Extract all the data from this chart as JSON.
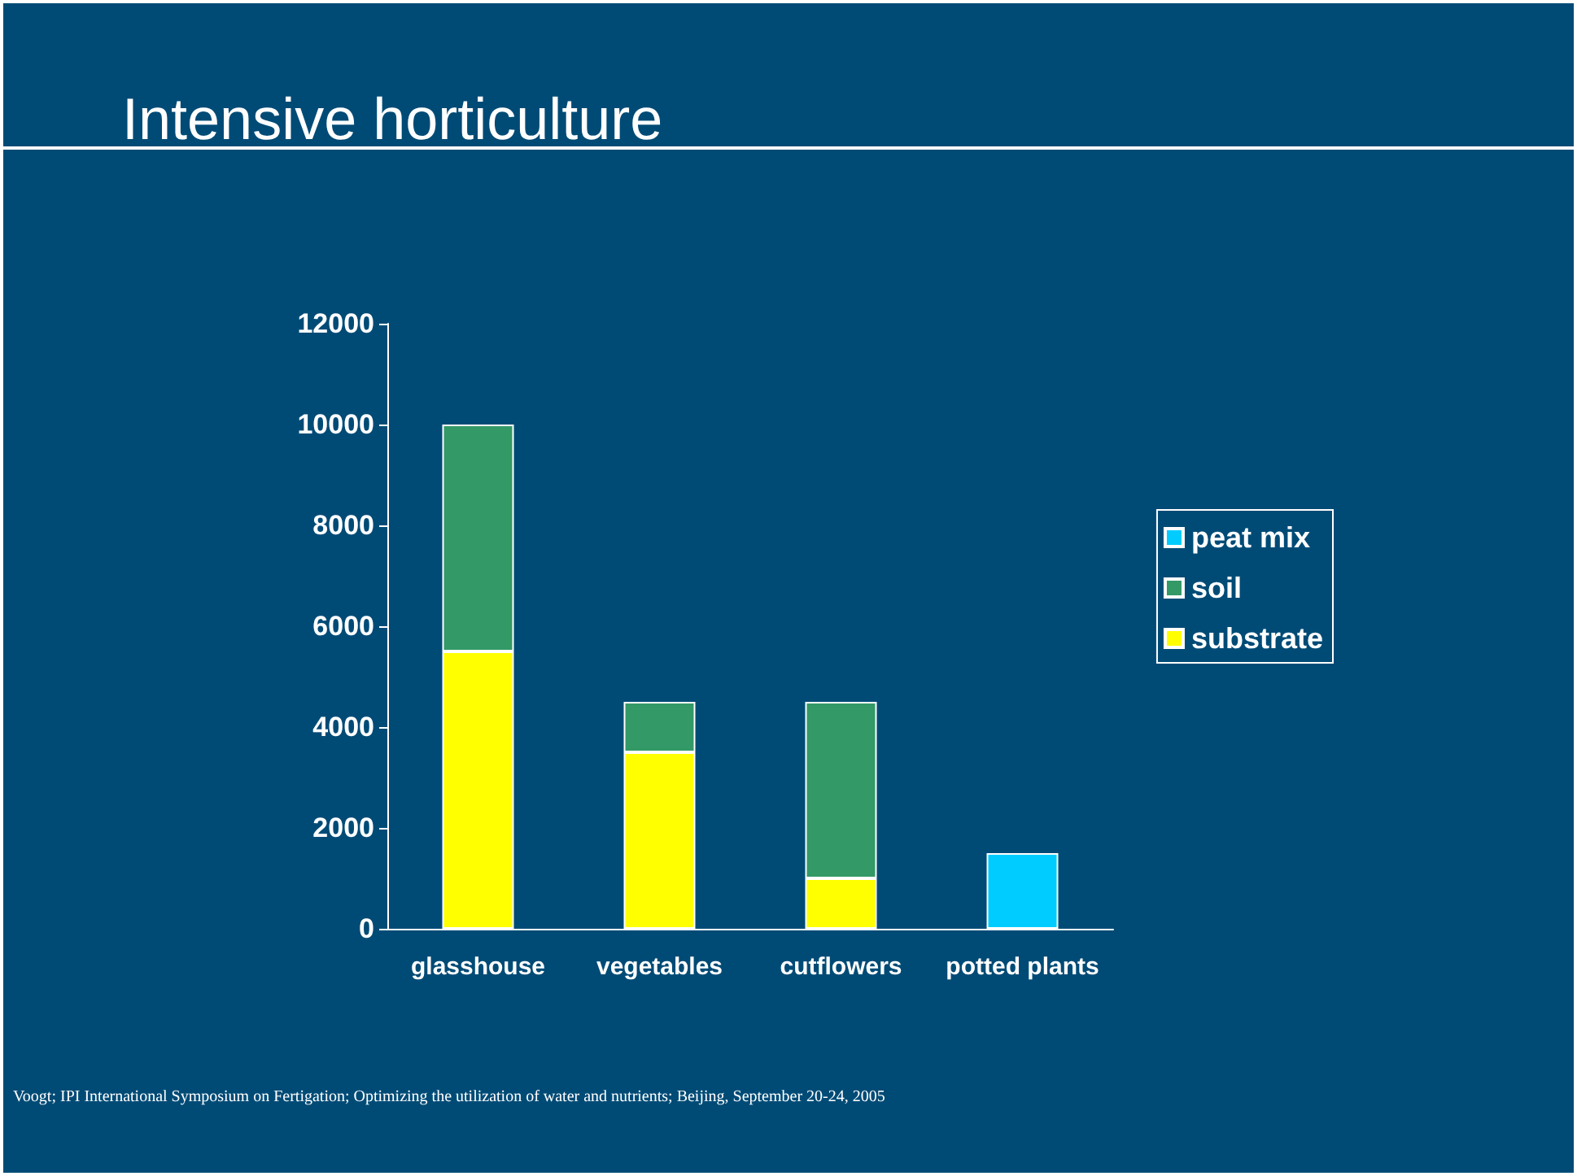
{
  "chart_data": {
    "type": "bar",
    "title": "Intensive horticulture",
    "categories": [
      "glasshouse",
      "vegetables",
      "cutflowers",
      "potted plants"
    ],
    "series": [
      {
        "name": "substrate",
        "color": "#ffff00",
        "values": [
          5500,
          3500,
          1000,
          null
        ]
      },
      {
        "name": "soil",
        "color": "#339966",
        "values": [
          4500,
          1000,
          3500,
          null
        ]
      },
      {
        "name": "peat mix",
        "color": "#00ccff",
        "values": [
          null,
          null,
          null,
          1500
        ]
      }
    ],
    "stacked": true,
    "ylim": [
      0,
      12000
    ],
    "yticks": [
      0,
      2000,
      4000,
      6000,
      8000,
      10000,
      12000
    ],
    "grid": false,
    "legend": "right",
    "annotations": [
      "Voogt; IPI International Symposium on Fertigation; Optimizing the utilization of water and nutrients; Beijing, September 20-24, 2005"
    ]
  }
}
